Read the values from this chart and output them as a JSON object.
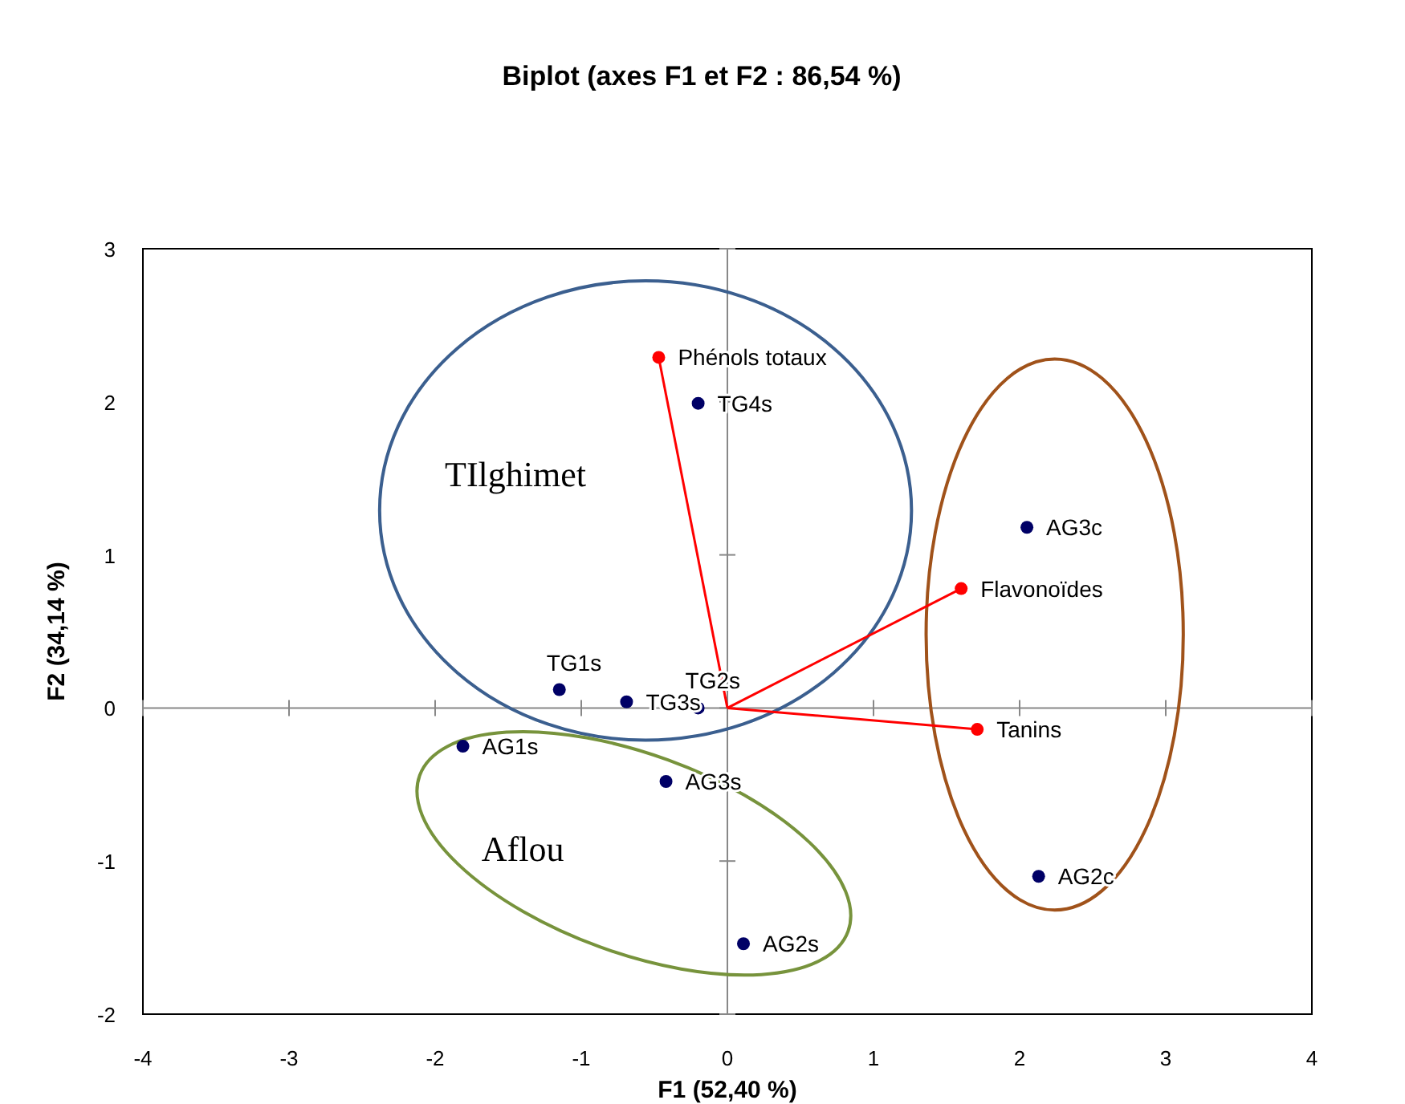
{
  "chart_data": {
    "type": "scatter",
    "title": "Biplot (axes F1 et F2 : 86,54 %)",
    "xlabel": "F1 (52,40 %)",
    "ylabel": "F2 (34,14 %)",
    "xlim": [
      -4,
      4
    ],
    "xticks": [
      -4,
      -3,
      -2,
      -1,
      0,
      1,
      2,
      3,
      4
    ],
    "ylim": [
      -2,
      3
    ],
    "yticks": [
      -2,
      -1,
      0,
      1,
      2,
      3
    ],
    "marker": "circle",
    "series": [
      {
        "type": "line",
        "color": "#ff0000",
        "x": [
          0,
          -0.47
        ],
        "values": [
          0,
          2.29
        ],
        "marker": "none"
      },
      {
        "type": "line",
        "color": "#ff0000",
        "x": [
          0,
          1.6
        ],
        "values": [
          0,
          0.78
        ],
        "marker": "none"
      },
      {
        "type": "line",
        "color": "#ff0000",
        "x": [
          0,
          1.71
        ],
        "values": [
          0,
          -0.14
        ],
        "marker": "none"
      },
      {
        "color": "#ff0000",
        "x": [
          -0.47,
          1.6,
          1.71
        ],
        "values": [
          2.29,
          0.78,
          -0.14
        ]
      },
      {
        "color": "#000066",
        "x": [
          -0.2,
          2.05,
          -1.15,
          -0.69,
          -0.2,
          -1.81,
          -0.42,
          2.13,
          0.11
        ],
        "values": [
          1.99,
          1.18,
          0.12,
          0.04,
          0.0,
          -0.25,
          -0.48,
          -1.1,
          -1.54
        ]
      }
    ],
    "annotations": [
      {
        "text": "Phénols totaux",
        "x": -0.47,
        "y": 2.29
      },
      {
        "text": "Flavonoïdes",
        "x": 1.6,
        "y": 0.78
      },
      {
        "text": "Tanins",
        "x": 1.71,
        "y": -0.14
      },
      {
        "text": "TG4s",
        "x": -0.2,
        "y": 1.99
      },
      {
        "text": "AG3c",
        "x": 2.05,
        "y": 1.18
      },
      {
        "text": "TG1s",
        "x": -1.15,
        "y": 0.12
      },
      {
        "text": "TG3s",
        "x": -0.69,
        "y": 0.04
      },
      {
        "text": "TG2s",
        "x": -0.2,
        "y": 0.0
      },
      {
        "text": "AG1s",
        "x": -1.81,
        "y": -0.25
      },
      {
        "text": "AG3s",
        "x": -0.42,
        "y": -0.48
      },
      {
        "text": "AG2c",
        "x": 2.13,
        "y": -1.1
      },
      {
        "text": "AG2s",
        "x": 0.11,
        "y": -1.54
      },
      "TIlghimet",
      "Aflou"
    ]
  }
}
